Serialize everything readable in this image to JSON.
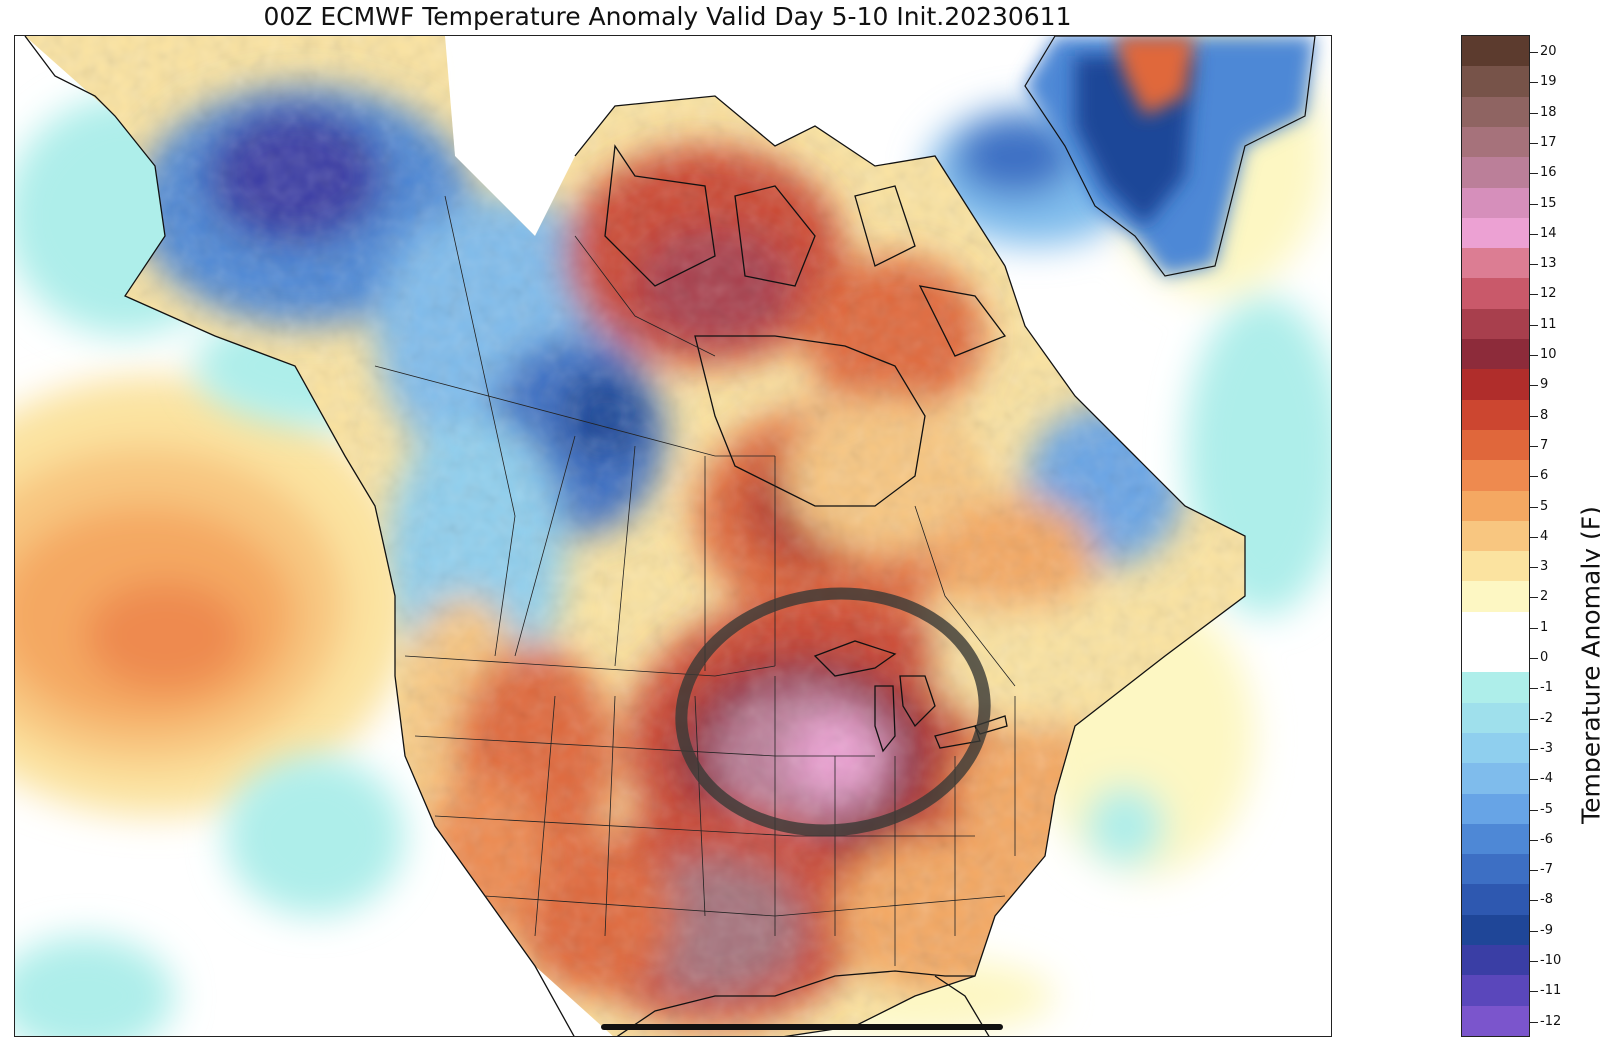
{
  "title": "00Z ECMWF Temperature Anomaly Valid Day 5-10 Init.20230611",
  "colorbar": {
    "label": "Temperature Anomaly (F)",
    "levels": [
      {
        "v": 20,
        "label": "20",
        "color": "#5c3b2e"
      },
      {
        "v": 19,
        "label": "19",
        "color": "#775349"
      },
      {
        "v": 18,
        "label": "18",
        "color": "#8f6462"
      },
      {
        "v": 17,
        "label": "17",
        "color": "#a6727b"
      },
      {
        "v": 16,
        "label": "16",
        "color": "#bb7f99"
      },
      {
        "v": 15,
        "label": "15",
        "color": "#d68fbb"
      },
      {
        "v": 14,
        "label": "14",
        "color": "#eca1d3"
      },
      {
        "v": 13,
        "label": "13",
        "color": "#dc7d93"
      },
      {
        "v": 12,
        "label": "12",
        "color": "#c9596a"
      },
      {
        "v": 11,
        "label": "11",
        "color": "#a83f4d"
      },
      {
        "v": 10,
        "label": "10",
        "color": "#8d2b3a"
      },
      {
        "v": 9,
        "label": "9",
        "color": "#b02d2b"
      },
      {
        "v": 8,
        "label": "8",
        "color": "#cc4630"
      },
      {
        "v": 7,
        "label": "7",
        "color": "#e0673b"
      },
      {
        "v": 6,
        "label": "6",
        "color": "#ee8a4f"
      },
      {
        "v": 5,
        "label": "5",
        "color": "#f4a862"
      },
      {
        "v": 4,
        "label": "4",
        "color": "#f8c680"
      },
      {
        "v": 3,
        "label": "3",
        "color": "#fbe3a0"
      },
      {
        "v": 2,
        "label": "2",
        "color": "#fdf7c3"
      },
      {
        "v": 1,
        "label": "1",
        "color": "#ffffff"
      },
      {
        "v": 0,
        "label": "0",
        "color": "#ffffff"
      },
      {
        "v": -1,
        "label": "-1",
        "color": "#aeeeea"
      },
      {
        "v": -2,
        "label": "-2",
        "color": "#9fe0ec"
      },
      {
        "v": -3,
        "label": "-3",
        "color": "#8fcfee"
      },
      {
        "v": -4,
        "label": "-4",
        "color": "#7fbcec"
      },
      {
        "v": -5,
        "label": "-5",
        "color": "#67a4e6"
      },
      {
        "v": -6,
        "label": "-6",
        "color": "#4e88d6"
      },
      {
        "v": -7,
        "label": "-7",
        "color": "#3d6fc4"
      },
      {
        "v": -8,
        "label": "-8",
        "color": "#2e58b0"
      },
      {
        "v": -9,
        "label": "-9",
        "color": "#1f4698"
      },
      {
        "v": -10,
        "label": "-10",
        "color": "#3a3ea5"
      },
      {
        "v": -11,
        "label": "-11",
        "color": "#5a47bb"
      },
      {
        "v": -12,
        "label": "-12",
        "color": "#7b55cc"
      }
    ]
  },
  "map": {
    "region": "North America",
    "highlight_circle": "Upper Midwest / Great Lakes"
  }
}
